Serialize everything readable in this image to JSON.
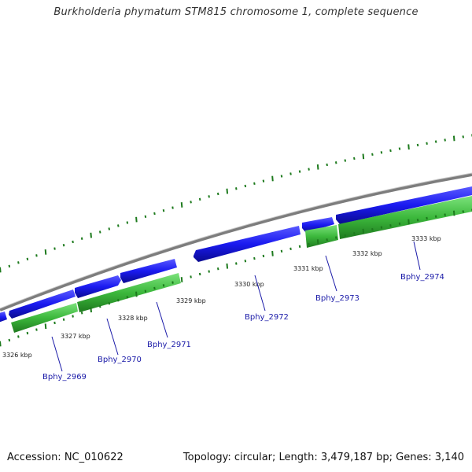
{
  "title": "Burkholderia phymatum STM815 chromosome 1, complete sequence",
  "footer": {
    "accession": "Accession: NC_010622",
    "summary": "Topology: circular; Length: 3,479,187 bp; Genes: 3,140"
  },
  "colors": {
    "backbone": "#8a8a8a",
    "gene_forward": "#1a1af0",
    "cds_green": "#3cb83c",
    "cds_green_dark": "#1f7a1f",
    "tick": "#1d7a1d",
    "label": "#1a1aa8"
  },
  "scale_labels": [
    "3326 kbp",
    "3327 kbp",
    "3328 kbp",
    "3329 kbp",
    "3330 kbp",
    "3331 kbp",
    "3332 kbp",
    "3333 kbp"
  ],
  "gene_labels": [
    "Bphy_2969",
    "Bphy_2970",
    "Bphy_2971",
    "Bphy_2972",
    "Bphy_2973",
    "Bphy_2974"
  ]
}
